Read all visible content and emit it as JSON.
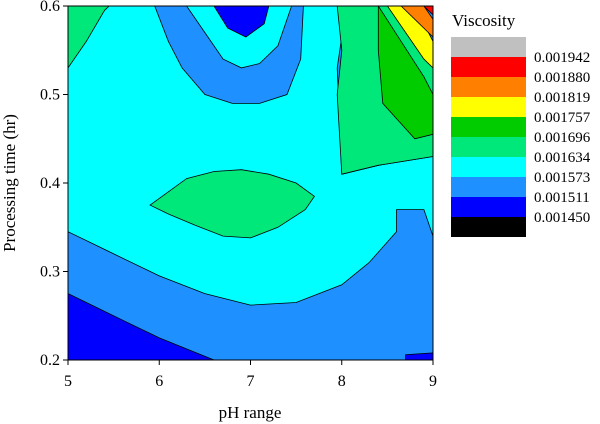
{
  "chart_data": {
    "type": "contour",
    "xlabel": "pH range",
    "ylabel": "Processing time (hr)",
    "xlim": [
      5,
      9
    ],
    "ylim": [
      0.2,
      0.6
    ],
    "x_ticks": [
      "5",
      "6",
      "7",
      "8",
      "9"
    ],
    "y_ticks": [
      "0.2",
      "0.3",
      "0.4",
      "0.5",
      "0.6"
    ],
    "legend": {
      "title": "Viscosity",
      "placement": "right",
      "levels": [
        "0.001942",
        "0.001880",
        "0.001819",
        "0.001757",
        "0.001696",
        "0.001634",
        "0.001573",
        "0.001511",
        "0.001450"
      ],
      "colors": [
        "#c0c0c0",
        "#ff0000",
        "#ff8000",
        "#ffff00",
        "#00cc00",
        "#00e87a",
        "#00ffff",
        "#1e90ff",
        "#0000ff",
        "#000000"
      ]
    },
    "contours": [
      {
        "level": "0.001511-0.001573",
        "color": "#1e90ff",
        "points": [
          [
            5,
            0.2
          ],
          [
            9,
            0.2
          ],
          [
            9,
            0.6
          ],
          [
            5,
            0.6
          ]
        ]
      },
      {
        "level": "0.001450-0.001511",
        "color": "#0000ff",
        "points": [
          [
            5,
            0.2
          ],
          [
            6.6,
            0.2
          ],
          [
            6.0,
            0.225
          ],
          [
            5.6,
            0.245
          ],
          [
            5.2,
            0.265
          ],
          [
            5,
            0.275
          ]
        ]
      },
      {
        "level": "0.001450-0.001511",
        "color": "#0000ff",
        "points": [
          [
            8.7,
            0.2
          ],
          [
            9,
            0.2
          ],
          [
            9,
            0.208
          ],
          [
            8.7,
            0.206
          ]
        ]
      },
      {
        "level": "0.001573-0.001634",
        "color": "#00ffff",
        "points": [
          [
            5,
            0.345
          ],
          [
            5.4,
            0.325
          ],
          [
            6.0,
            0.295
          ],
          [
            6.5,
            0.275
          ],
          [
            7.0,
            0.262
          ],
          [
            7.5,
            0.265
          ],
          [
            8.0,
            0.285
          ],
          [
            8.3,
            0.31
          ],
          [
            8.6,
            0.345
          ],
          [
            8.6,
            0.37
          ],
          [
            8.9,
            0.37
          ],
          [
            9,
            0.34
          ],
          [
            9,
            0.43
          ],
          [
            8.4,
            0.42
          ],
          [
            8.0,
            0.41
          ],
          [
            7.95,
            0.53
          ],
          [
            8.05,
            0.6
          ],
          [
            6.7,
            0.6
          ],
          [
            5.5,
            0.6
          ],
          [
            5,
            0.6
          ]
        ]
      },
      {
        "level": "0.001511-0.001573",
        "color": "#1e90ff",
        "points": [
          [
            6.3,
            0.6
          ],
          [
            6.5,
            0.57
          ],
          [
            6.7,
            0.54
          ],
          [
            6.9,
            0.53
          ],
          [
            7.1,
            0.535
          ],
          [
            7.3,
            0.555
          ],
          [
            7.45,
            0.6
          ],
          [
            7.58,
            0.6
          ],
          [
            7.55,
            0.54
          ],
          [
            7.4,
            0.5
          ],
          [
            7.1,
            0.49
          ],
          [
            6.8,
            0.49
          ],
          [
            6.5,
            0.5
          ],
          [
            6.25,
            0.53
          ],
          [
            6.1,
            0.56
          ],
          [
            5.95,
            0.6
          ]
        ]
      },
      {
        "level": "0.001450-0.001511",
        "color": "#0000ff",
        "points": [
          [
            6.6,
            0.6
          ],
          [
            6.75,
            0.575
          ],
          [
            6.95,
            0.565
          ],
          [
            7.15,
            0.58
          ],
          [
            7.2,
            0.6
          ]
        ]
      },
      {
        "level": "0.001634-0.001696",
        "color": "#00e87a",
        "points": [
          [
            5,
            0.53
          ],
          [
            5.2,
            0.56
          ],
          [
            5.4,
            0.595
          ],
          [
            5.45,
            0.6
          ],
          [
            5,
            0.6
          ]
        ]
      },
      {
        "level": "0.001634-0.001696",
        "color": "#00e87a",
        "points": [
          [
            5.9,
            0.375
          ],
          [
            6.1,
            0.39
          ],
          [
            6.3,
            0.405
          ],
          [
            6.6,
            0.413
          ],
          [
            6.9,
            0.415
          ],
          [
            7.2,
            0.41
          ],
          [
            7.5,
            0.4
          ],
          [
            7.7,
            0.385
          ],
          [
            7.6,
            0.37
          ],
          [
            7.3,
            0.35
          ],
          [
            7.0,
            0.338
          ],
          [
            6.7,
            0.34
          ],
          [
            6.4,
            0.352
          ],
          [
            6.1,
            0.365
          ]
        ]
      },
      {
        "level": "0.001634-0.001696",
        "color": "#00e87a",
        "points": [
          [
            7.95,
            0.6
          ],
          [
            8.5,
            0.6
          ],
          [
            9,
            0.55
          ],
          [
            9,
            0.43
          ],
          [
            8.4,
            0.42
          ],
          [
            8.0,
            0.41
          ],
          [
            7.95,
            0.5
          ],
          [
            8.0,
            0.55
          ]
        ]
      },
      {
        "level": "0.001696-0.001757",
        "color": "#00cc00",
        "points": [
          [
            8.4,
            0.6
          ],
          [
            8.9,
            0.52
          ],
          [
            9,
            0.5
          ],
          [
            9,
            0.455
          ],
          [
            8.8,
            0.45
          ],
          [
            8.45,
            0.49
          ],
          [
            8.4,
            0.55
          ]
        ]
      },
      {
        "level": "0.001757-0.001819",
        "color": "#ffff00",
        "points": [
          [
            8.5,
            0.6
          ],
          [
            8.8,
            0.6
          ],
          [
            9,
            0.56
          ],
          [
            9,
            0.53
          ],
          [
            8.9,
            0.54
          ]
        ]
      },
      {
        "level": "0.001819-0.001880",
        "color": "#ff8000",
        "points": [
          [
            8.65,
            0.6
          ],
          [
            8.9,
            0.6
          ],
          [
            9,
            0.585
          ],
          [
            9,
            0.565
          ],
          [
            8.85,
            0.58
          ]
        ]
      },
      {
        "level": "0.001880-0.001942",
        "color": "#ff0000",
        "points": [
          [
            8.9,
            0.6
          ],
          [
            9,
            0.6
          ],
          [
            9,
            0.59
          ]
        ]
      }
    ]
  }
}
